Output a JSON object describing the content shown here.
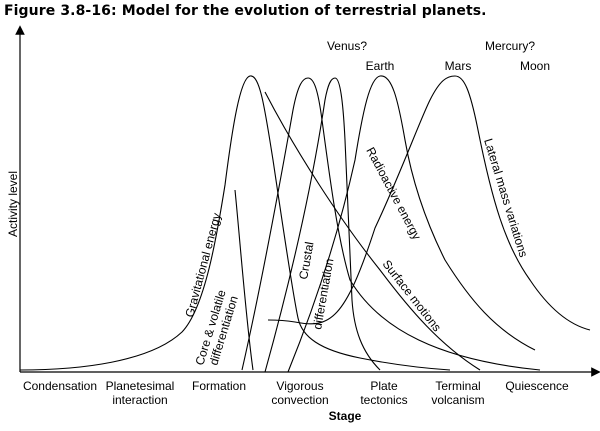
{
  "title": "Figure 3.8-16: Model for the evolution of terrestrial planets.",
  "axes": {
    "y_label": "Activity level",
    "x_label": "Stage"
  },
  "stages": [
    {
      "lines": [
        "Condensation"
      ]
    },
    {
      "lines": [
        "Planetesimal",
        "interaction"
      ]
    },
    {
      "lines": [
        "Formation"
      ]
    },
    {
      "lines": [
        "Vigorous",
        "convection"
      ]
    },
    {
      "lines": [
        "Plate",
        "tectonics"
      ]
    },
    {
      "lines": [
        "Terminal",
        "volcanism"
      ]
    },
    {
      "lines": [
        "Quiescence"
      ]
    }
  ],
  "planets": [
    "Venus?",
    "Mercury?",
    "Earth",
    "Mars",
    "Moon"
  ],
  "curve_labels": {
    "gravitational": "Gravitational energy",
    "core_1": "Core & volatile",
    "core_2": "differentiation",
    "crustal_1": "Crustal",
    "crustal_2": "differentiation",
    "surface": "Surface motions",
    "radioactive": "Radioactive energy",
    "lateral": "Lateral mass variations"
  }
}
